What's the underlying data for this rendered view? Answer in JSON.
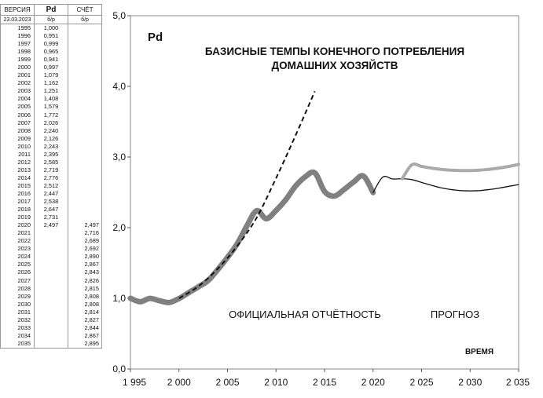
{
  "table": {
    "headers": [
      "ВЕРСИЯ",
      "Pd",
      "СЧЁТ"
    ],
    "subheaders": [
      "23.03.2023",
      "б/р",
      "б/р"
    ],
    "rows": [
      {
        "year": "1995",
        "pd": "1,000",
        "sch": ""
      },
      {
        "year": "1996",
        "pd": "0,951",
        "sch": ""
      },
      {
        "year": "1997",
        "pd": "0,999",
        "sch": ""
      },
      {
        "year": "1998",
        "pd": "0,965",
        "sch": ""
      },
      {
        "year": "1999",
        "pd": "0,941",
        "sch": ""
      },
      {
        "year": "2000",
        "pd": "0,997",
        "sch": ""
      },
      {
        "year": "2001",
        "pd": "1,079",
        "sch": ""
      },
      {
        "year": "2002",
        "pd": "1,162",
        "sch": ""
      },
      {
        "year": "2003",
        "pd": "1,251",
        "sch": ""
      },
      {
        "year": "2004",
        "pd": "1,408",
        "sch": ""
      },
      {
        "year": "2005",
        "pd": "1,579",
        "sch": ""
      },
      {
        "year": "2006",
        "pd": "1,772",
        "sch": ""
      },
      {
        "year": "2007",
        "pd": "2,026",
        "sch": ""
      },
      {
        "year": "2008",
        "pd": "2,240",
        "sch": ""
      },
      {
        "year": "2009",
        "pd": "2,126",
        "sch": ""
      },
      {
        "year": "2010",
        "pd": "2,243",
        "sch": ""
      },
      {
        "year": "2011",
        "pd": "2,395",
        "sch": ""
      },
      {
        "year": "2012",
        "pd": "2,585",
        "sch": ""
      },
      {
        "year": "2013",
        "pd": "2,719",
        "sch": ""
      },
      {
        "year": "2014",
        "pd": "2,776",
        "sch": ""
      },
      {
        "year": "2015",
        "pd": "2,512",
        "sch": ""
      },
      {
        "year": "2016",
        "pd": "2,447",
        "sch": ""
      },
      {
        "year": "2017",
        "pd": "2,538",
        "sch": ""
      },
      {
        "year": "2018",
        "pd": "2,647",
        "sch": ""
      },
      {
        "year": "2019",
        "pd": "2,731",
        "sch": ""
      },
      {
        "year": "2020",
        "pd": "2,497",
        "sch": "2,497"
      },
      {
        "year": "2021",
        "pd": "",
        "sch": "2,716"
      },
      {
        "year": "2022",
        "pd": "",
        "sch": "2,689"
      },
      {
        "year": "2023",
        "pd": "",
        "sch": "2,692"
      },
      {
        "year": "2024",
        "pd": "",
        "sch": "2,890"
      },
      {
        "year": "2025",
        "pd": "",
        "sch": "2,867"
      },
      {
        "year": "2026",
        "pd": "",
        "sch": "2,843"
      },
      {
        "year": "2027",
        "pd": "",
        "sch": "2,826"
      },
      {
        "year": "2028",
        "pd": "",
        "sch": "2,815"
      },
      {
        "year": "2029",
        "pd": "",
        "sch": "2,808"
      },
      {
        "year": "2030",
        "pd": "",
        "sch": "2,808"
      },
      {
        "year": "2031",
        "pd": "",
        "sch": "2,814"
      },
      {
        "year": "2032",
        "pd": "",
        "sch": "2,827"
      },
      {
        "year": "2033",
        "pd": "",
        "sch": "2,844"
      },
      {
        "year": "2034",
        "pd": "",
        "sch": "2,867"
      },
      {
        "year": "2035",
        "pd": "",
        "sch": "2,895"
      }
    ]
  },
  "chart_data": {
    "type": "line",
    "label": "Pd",
    "title": "БАЗИСНЫЕ ТЕМПЫ КОНЕЧНОГО ПОТРЕБЛЕНИЯ\nДОМАШНИХ ХОЗЯЙСТВ",
    "xlabel": "ВРЕМЯ",
    "ylabel": "",
    "xlim": [
      1995,
      2035
    ],
    "ylim": [
      0,
      5
    ],
    "x_ticks": [
      1995,
      2000,
      2005,
      2010,
      2015,
      2020,
      2025,
      2030,
      2035
    ],
    "x_tick_labels": [
      "1 995",
      "2 000",
      "2 005",
      "2 010",
      "2 015",
      "2 020",
      "2 025",
      "2 030",
      "2 035"
    ],
    "y_ticks": [
      0,
      1,
      2,
      3,
      4,
      5
    ],
    "y_tick_labels": [
      "0,0",
      "1,0",
      "2,0",
      "3,0",
      "4,0",
      "5,0"
    ],
    "annotations": [
      "ОФИЦИАЛЬНАЯ  ОТЧЁТНОСТЬ",
      "ПРОГНОЗ"
    ],
    "grid": false,
    "series": [
      {
        "style": "thick",
        "color": "#808080",
        "x": [
          1995,
          1996,
          1997,
          1998,
          1999,
          2000,
          2001,
          2002,
          2003,
          2004,
          2005,
          2006,
          2007,
          2008,
          2009,
          2010,
          2011,
          2012,
          2013,
          2014,
          2015,
          2016,
          2017,
          2018,
          2019,
          2020
        ],
        "y": [
          1.0,
          0.951,
          0.999,
          0.965,
          0.941,
          0.997,
          1.079,
          1.162,
          1.251,
          1.408,
          1.579,
          1.772,
          2.026,
          2.24,
          2.126,
          2.243,
          2.395,
          2.585,
          2.719,
          2.776,
          2.512,
          2.447,
          2.538,
          2.647,
          2.731,
          2.497
        ]
      },
      {
        "style": "dashed",
        "color": "#111111",
        "x": [
          2000,
          2002,
          2004,
          2006,
          2008,
          2010,
          2012,
          2014
        ],
        "y": [
          1.0,
          1.17,
          1.42,
          1.74,
          2.14,
          2.7,
          3.3,
          3.93
        ]
      },
      {
        "style": "thin",
        "color": "#111111",
        "x": [
          2020,
          2021,
          2022,
          2023,
          2024,
          2025,
          2026,
          2027,
          2028,
          2029,
          2030,
          2031,
          2032,
          2033,
          2034,
          2035
        ],
        "y": [
          2.497,
          2.716,
          2.689,
          2.692,
          2.68,
          2.64,
          2.6,
          2.565,
          2.54,
          2.525,
          2.52,
          2.525,
          2.54,
          2.56,
          2.585,
          2.61
        ]
      },
      {
        "style": "medium",
        "color": "#aaaaaa",
        "x": [
          2023,
          2024,
          2025,
          2026,
          2027,
          2028,
          2029,
          2030,
          2031,
          2032,
          2033,
          2034,
          2035
        ],
        "y": [
          2.692,
          2.89,
          2.867,
          2.843,
          2.826,
          2.815,
          2.808,
          2.808,
          2.814,
          2.827,
          2.844,
          2.867,
          2.895
        ]
      }
    ]
  }
}
